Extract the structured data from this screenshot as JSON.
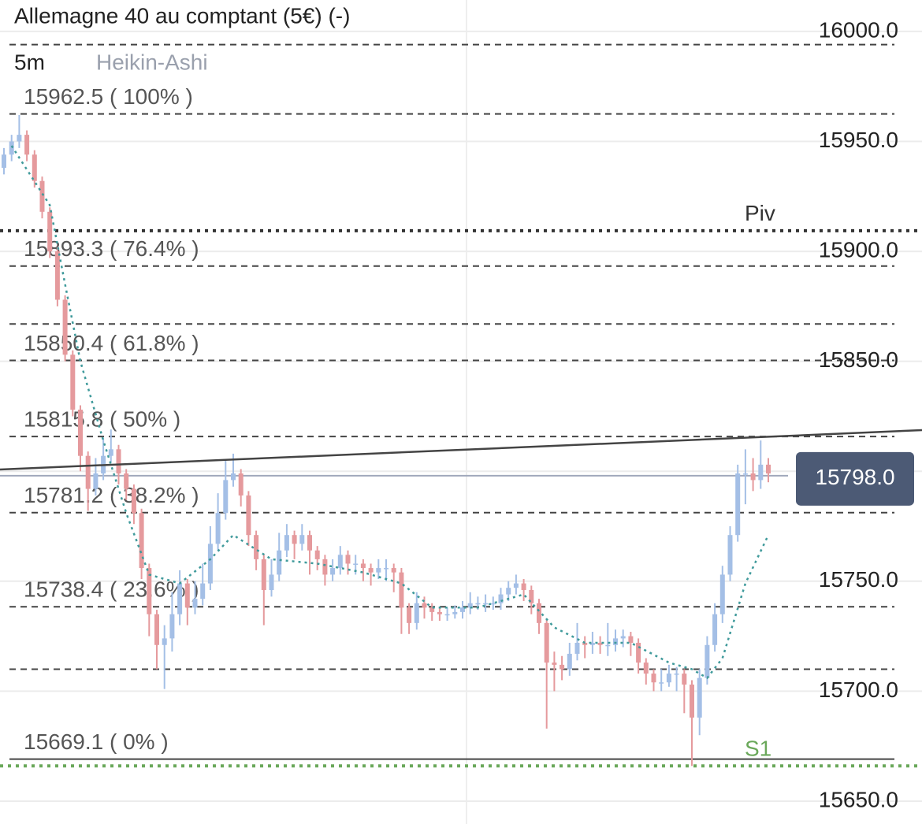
{
  "chart_data": {
    "type": "candlestick",
    "title": "Allemagne 40 au comptant (5€) (-)",
    "timeframe": "5m",
    "chart_style": "Heikin-Ashi",
    "ylim": [
      15639.6,
      16014.3
    ],
    "yticks": [
      {
        "value": 15650,
        "label": "15650.0"
      },
      {
        "value": 15700,
        "label": "15700.0"
      },
      {
        "value": 15750,
        "label": "15750.0"
      },
      {
        "value": 15800,
        "label": "15800.0"
      },
      {
        "value": 15850,
        "label": "15850.0"
      },
      {
        "value": 15900,
        "label": "15900.0"
      },
      {
        "value": 15950,
        "label": "15950.0"
      },
      {
        "value": 16000,
        "label": "16000.0"
      }
    ],
    "up_color": "#a4bfe6",
    "down_color": "#e59a9d",
    "open": [
      15938,
      15944,
      15950,
      15953,
      15944,
      15932,
      15918,
      15900,
      15878,
      15853,
      15828,
      15807,
      15792,
      15799,
      15807,
      15810,
      15799,
      15792,
      15781,
      15756,
      15735,
      15721,
      15724,
      15735,
      15749,
      15738,
      15742,
      15749,
      15767,
      15781,
      15796,
      15799,
      15789,
      15771,
      15760,
      15746,
      15753,
      15764,
      15771,
      15767,
      15771,
      15764,
      15760,
      15753,
      15756,
      15762,
      15758,
      15758,
      15756,
      15754,
      15756,
      15756,
      15754,
      15738,
      15731,
      15740,
      15738,
      15736,
      15735,
      15735,
      15736,
      15738,
      15740,
      15740,
      15740,
      15740,
      15744,
      15747,
      15749,
      15746,
      15740,
      15731,
      15713,
      15712,
      15710,
      15717,
      15722,
      15721,
      15722,
      15721,
      15721,
      15724,
      15725,
      15722,
      15713,
      15708,
      15704,
      15704,
      15708,
      15708,
      15703,
      15688,
      15706,
      15721,
      15735,
      15753,
      15771,
      15799,
      15799,
      15796,
      15803
    ],
    "high": [
      15947,
      15953,
      15962,
      15955,
      15946,
      15934,
      15920,
      15902,
      15880,
      15855,
      15830,
      15809,
      15806,
      15815,
      15819,
      15812,
      15801,
      15794,
      15783,
      15758,
      15737,
      15730,
      15745,
      15755,
      15751,
      15750,
      15758,
      15775,
      15790,
      15805,
      15808,
      15801,
      15791,
      15773,
      15762,
      15760,
      15772,
      15776,
      15773,
      15776,
      15773,
      15766,
      15762,
      15760,
      15766,
      15764,
      15762,
      15760,
      15758,
      15760,
      15760,
      15758,
      15756,
      15740,
      15745,
      15743,
      15740,
      15738,
      15738,
      15739,
      15741,
      15745,
      15743,
      15744,
      15743,
      15747,
      15750,
      15753,
      15751,
      15748,
      15742,
      15733,
      15718,
      15716,
      15722,
      15731,
      15725,
      15727,
      15725,
      15731,
      15728,
      15728,
      15727,
      15724,
      15715,
      15710,
      15710,
      15712,
      15711,
      15710,
      15705,
      15710,
      15725,
      15740,
      15757,
      15775,
      15803,
      15810,
      15806,
      15814,
      15806
    ],
    "low": [
      15935,
      15941,
      15947,
      15941,
      15929,
      15915,
      15897,
      15875,
      15850,
      15825,
      15800,
      15782,
      15789,
      15796,
      15804,
      15794,
      15787,
      15776,
      15751,
      15725,
      15710,
      15701,
      15718,
      15730,
      15730,
      15735,
      15739,
      15746,
      15764,
      15778,
      15793,
      15784,
      15766,
      15755,
      15730,
      15743,
      15750,
      15761,
      15760,
      15764,
      15753,
      15755,
      15748,
      15750,
      15753,
      15753,
      15753,
      15750,
      15748,
      15751,
      15750,
      15745,
      15726,
      15726,
      15728,
      15733,
      15732,
      15732,
      15732,
      15733,
      15733,
      15735,
      15737,
      15736,
      15737,
      15737,
      15741,
      15744,
      15741,
      15735,
      15726,
      15683,
      15700,
      15705,
      15707,
      15714,
      15715,
      15717,
      15717,
      15716,
      15718,
      15720,
      15716,
      15708,
      15703,
      15700,
      15700,
      15702,
      15700,
      15690,
      15666,
      15680,
      15703,
      15718,
      15731,
      15750,
      15768,
      15785,
      15791,
      15792,
      15795
    ],
    "close": [
      15944,
      15950,
      15953,
      15944,
      15932,
      15918,
      15900,
      15878,
      15853,
      15828,
      15807,
      15792,
      15799,
      15807,
      15810,
      15799,
      15792,
      15781,
      15756,
      15735,
      15721,
      15724,
      15735,
      15749,
      15738,
      15742,
      15749,
      15767,
      15781,
      15796,
      15799,
      15789,
      15771,
      15760,
      15746,
      15753,
      15764,
      15771,
      15767,
      15771,
      15764,
      15760,
      15753,
      15756,
      15762,
      15758,
      15758,
      15756,
      15754,
      15756,
      15756,
      15754,
      15738,
      15731,
      15740,
      15738,
      15736,
      15735,
      15735,
      15736,
      15738,
      15740,
      15740,
      15740,
      15740,
      15744,
      15747,
      15749,
      15746,
      15740,
      15731,
      15713,
      15712,
      15710,
      15717,
      15722,
      15721,
      15722,
      15721,
      15721,
      15724,
      15725,
      15722,
      15713,
      15708,
      15704,
      15704,
      15708,
      15708,
      15703,
      15688,
      15706,
      15721,
      15735,
      15753,
      15771,
      15799,
      15799,
      15796,
      15803,
      15799
    ],
    "moving_average": {
      "color": "#3f9a9b",
      "x": [
        1,
        6,
        8,
        10,
        13,
        16,
        19,
        23,
        27,
        30,
        35,
        41,
        47,
        52,
        56,
        62,
        68,
        72,
        76,
        82,
        87,
        90,
        92,
        94,
        97,
        100
      ],
      "values": [
        15948,
        15921,
        15885,
        15850,
        15814,
        15781,
        15753,
        15749,
        15760,
        15771,
        15760,
        15758,
        15754,
        15749,
        15738,
        15738,
        15744,
        15729,
        15722,
        15722,
        15713,
        15710,
        15706,
        15715,
        15749,
        15771
      ]
    },
    "fib_levels": [
      {
        "value": 15962.5,
        "label": "15962.5 ( 100% )"
      },
      {
        "value": 15893.3,
        "label": "15893.3 ( 76.4% )"
      },
      {
        "value": 15850.4,
        "label": "15850.4 ( 61.8% )"
      },
      {
        "value": 15815.8,
        "label": "15815.8 ( 50% )"
      },
      {
        "value": 15781.2,
        "label": "15781.2 ( 38.2% )"
      },
      {
        "value": 15738.4,
        "label": "15738.4 ( 23.6% )"
      },
      {
        "value": 15669.1,
        "label": "15669.1 ( 0% )"
      }
    ],
    "levels": [
      15994,
      15867,
      15710
    ],
    "pivots": [
      {
        "name": "Piv",
        "value": 15909.4,
        "color": "#333333"
      },
      {
        "name": "S1",
        "value": 15666,
        "color": "#6aa85a"
      }
    ],
    "trendline": [
      15800.8,
      15818.7
    ],
    "last_price": {
      "value": 15798,
      "label": "15798.0",
      "color": "#4c5a75"
    }
  }
}
